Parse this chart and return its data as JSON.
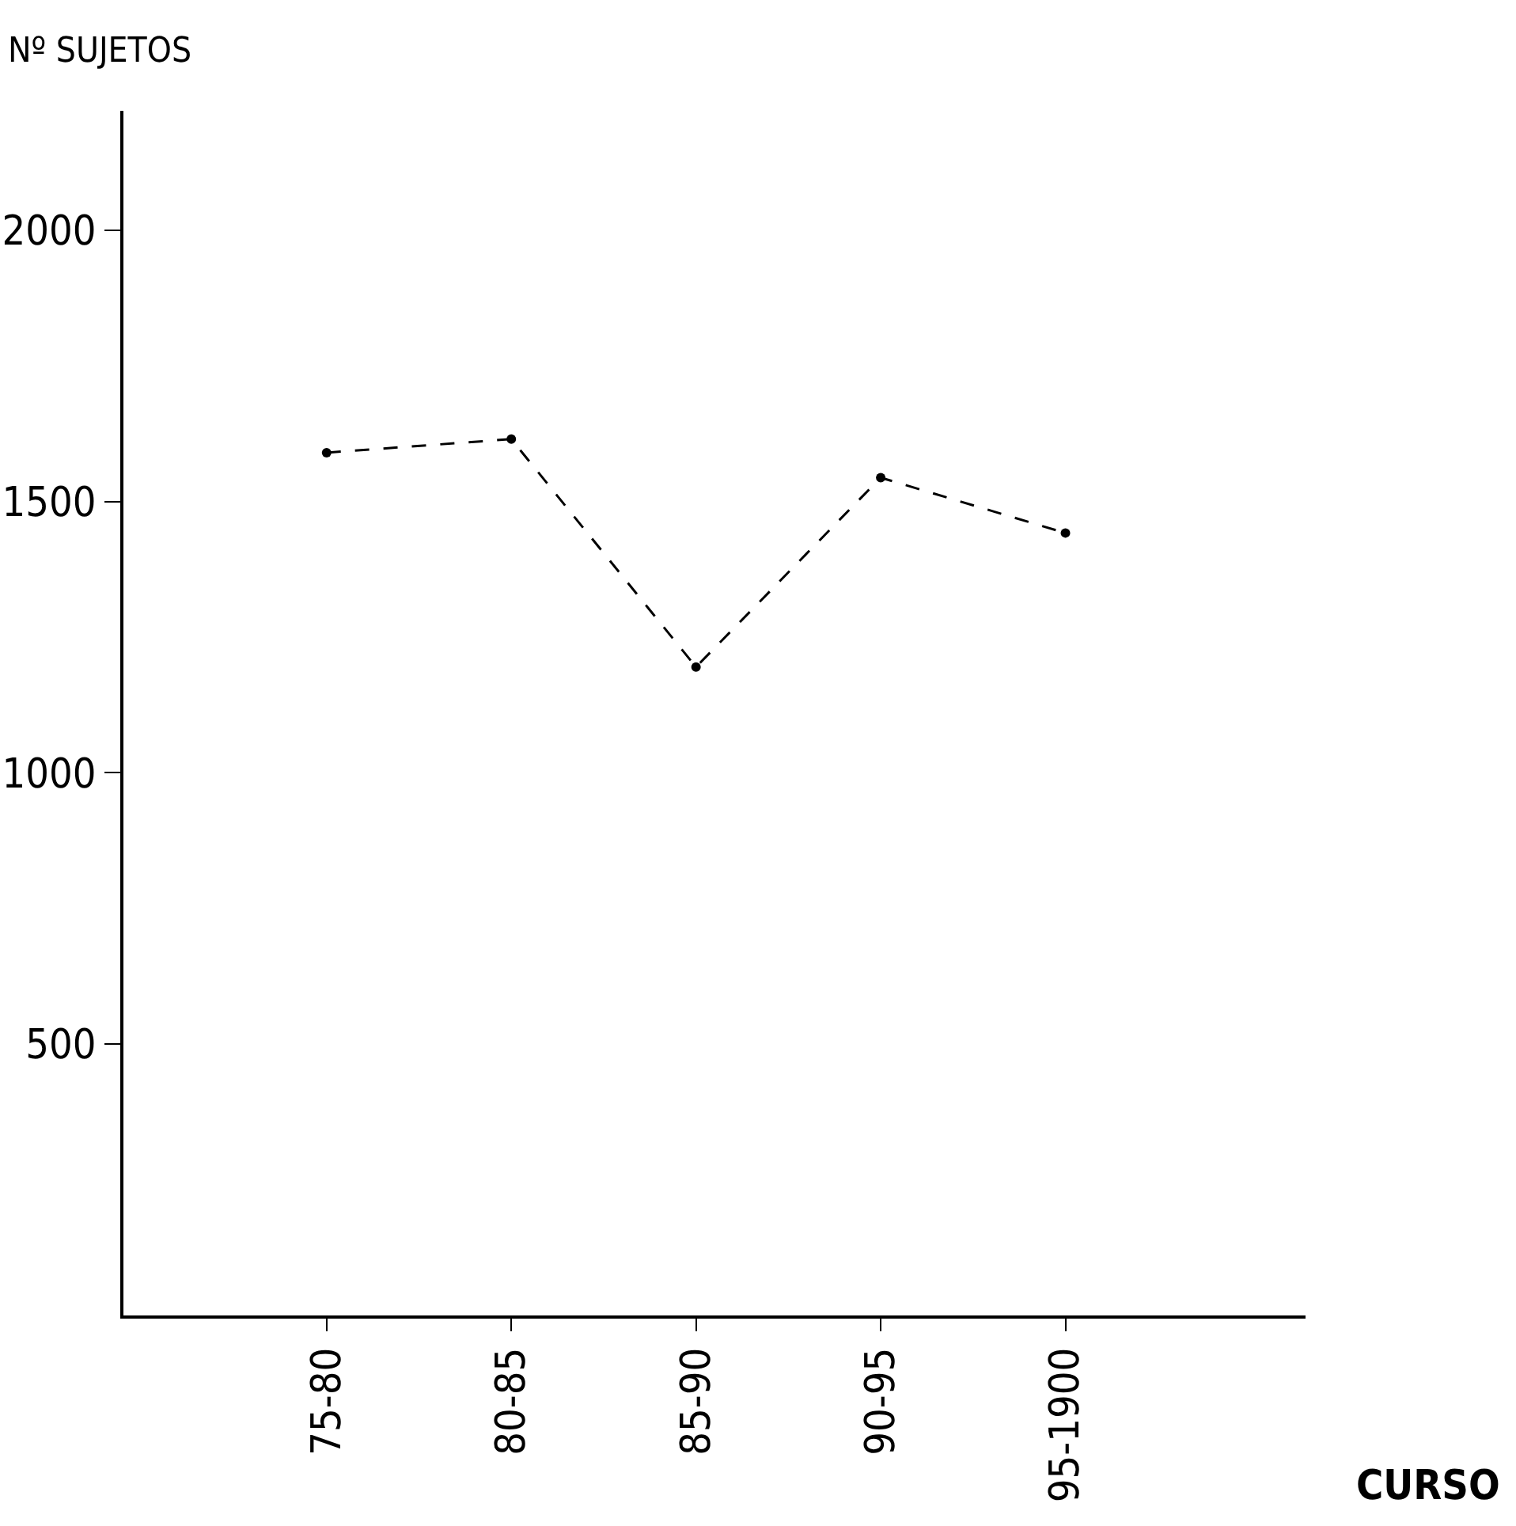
{
  "chart_data": {
    "type": "line",
    "ylabel": "Nº SUJETOS",
    "xlabel": "CURSO",
    "categories": [
      "75-80",
      "80-85",
      "85-90",
      "90-95",
      "95-1900"
    ],
    "series": [
      {
        "color": "#000000",
        "values": [
          1590,
          1615,
          1195,
          1544,
          1442
        ]
      }
    ],
    "ylim": [
      0,
      2220
    ],
    "yticks": [
      500,
      1000,
      1500,
      2000
    ],
    "grid": false,
    "marker": "circle",
    "line_style": "dashed"
  }
}
